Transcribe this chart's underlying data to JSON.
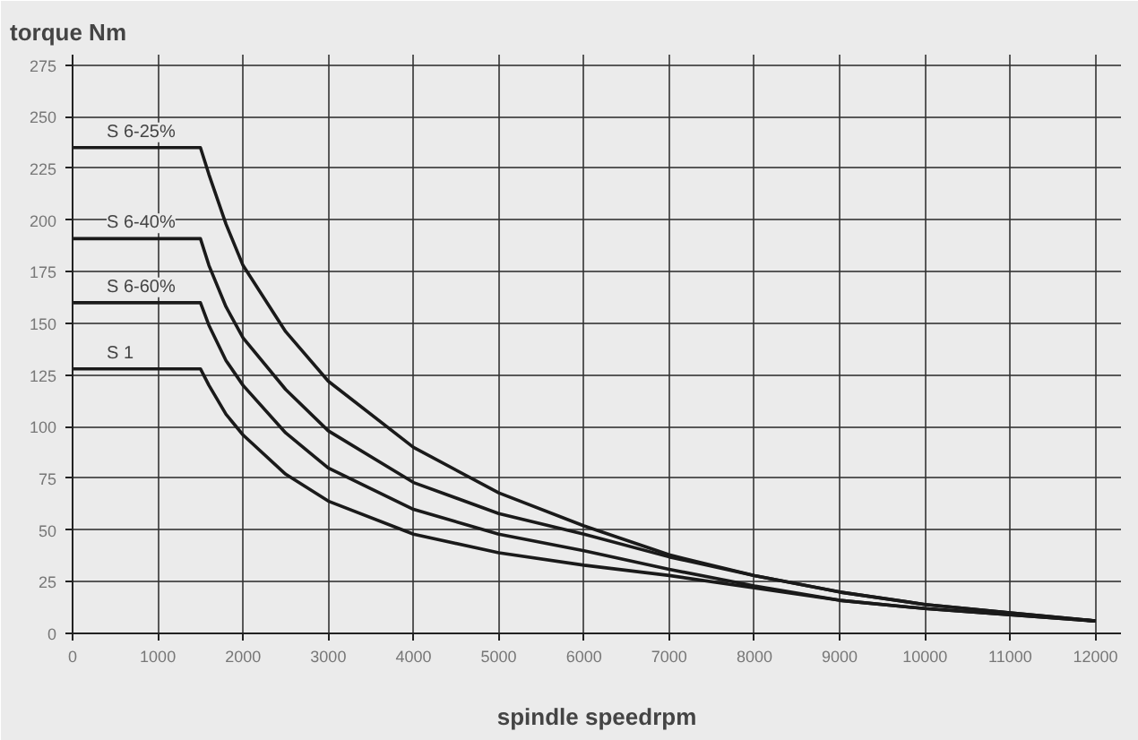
{
  "chart_data": {
    "type": "line",
    "ylabel": "torque Nm",
    "xlabel": "spindle speedrpm",
    "x": [
      0,
      1500,
      1600,
      1800,
      2000,
      2500,
      3000,
      4000,
      5000,
      6000,
      7000,
      8000,
      9000,
      10000,
      11000,
      12000
    ],
    "series": [
      {
        "name": "S 6-25%",
        "color": "#1a1a1a",
        "values": [
          235,
          235,
          222,
          198,
          178,
          146,
          122,
          90,
          68,
          52,
          38,
          28,
          20,
          14,
          10,
          6
        ]
      },
      {
        "name": "S 6-40%",
        "color": "#1a1a1a",
        "values": [
          191,
          191,
          178,
          158,
          143,
          118,
          98,
          73,
          58,
          48,
          37,
          28,
          20,
          14,
          10,
          6
        ]
      },
      {
        "name": "S 6-60%",
        "color": "#1a1a1a",
        "values": [
          160,
          160,
          149,
          132,
          120,
          97,
          80,
          60,
          48,
          40,
          31,
          23,
          16,
          12,
          9,
          6
        ]
      },
      {
        "name": "S 1",
        "color": "#1a1a1a",
        "values": [
          128,
          128,
          120,
          106,
          96,
          77,
          64,
          48,
          39,
          33,
          28,
          22,
          16,
          12,
          9,
          6
        ]
      }
    ],
    "xlim": [
      0,
      12300
    ],
    "ylim": [
      0,
      280
    ],
    "xticks": [
      0,
      1000,
      2000,
      3000,
      4000,
      5000,
      6000,
      7000,
      8000,
      9000,
      10000,
      11000,
      12000
    ],
    "yticks": [
      0,
      25,
      50,
      75,
      100,
      125,
      150,
      175,
      200,
      225,
      250,
      275
    ],
    "grid": true,
    "marker": "none",
    "line_style": "solid"
  }
}
